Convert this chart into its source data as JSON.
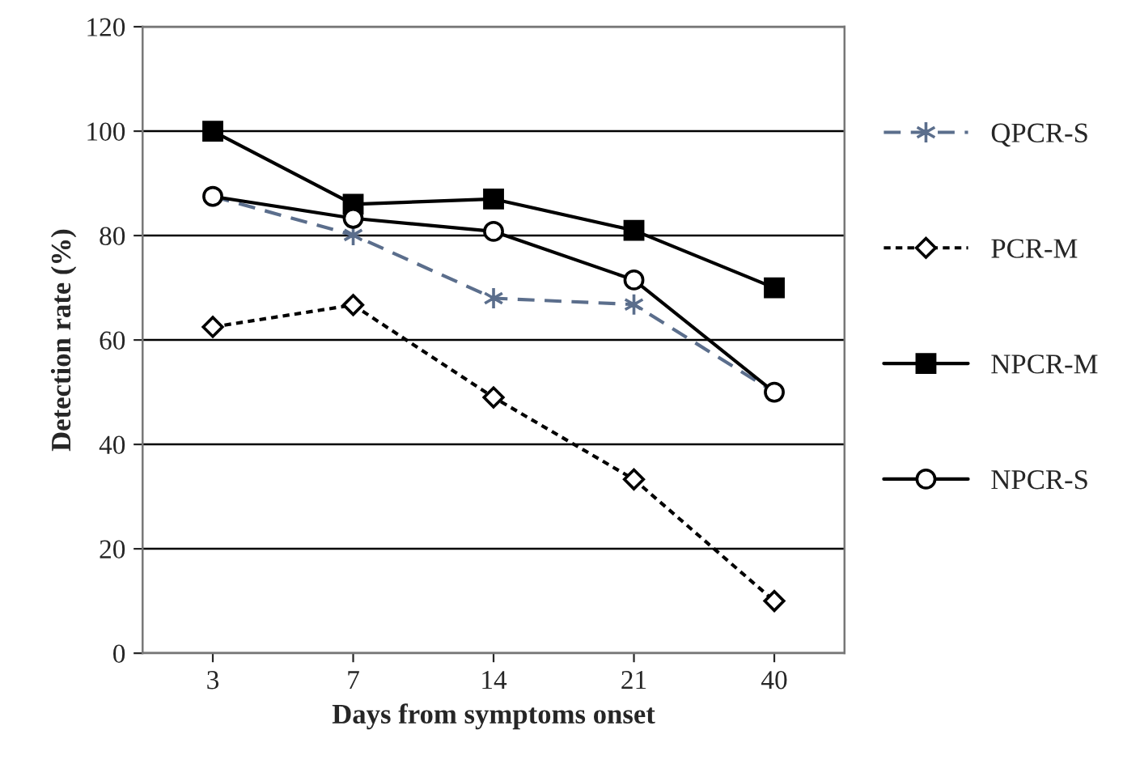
{
  "chart_data": {
    "type": "line",
    "xlabel": "Days from symptoms onset",
    "ylabel": "Detection rate (%)",
    "categories": [
      "3",
      "7",
      "14",
      "21",
      "40"
    ],
    "series": [
      {
        "name": "QPCR-S",
        "color": "#5b6e8c",
        "values": [
          87.5,
          80.1,
          68,
          66.8,
          50
        ],
        "marker": "cross",
        "line_style": "dashed"
      },
      {
        "name": "PCR-M",
        "color": "#000000",
        "values": [
          62.5,
          66.7,
          49,
          33.3,
          10
        ],
        "marker": "diamond",
        "line_style": "dotted"
      },
      {
        "name": "NPCR-M",
        "color": "#000000",
        "values": [
          100,
          86,
          87,
          81,
          70
        ],
        "marker": "square",
        "line_style": "solid"
      },
      {
        "name": "NPCR-S",
        "color": "#000000",
        "values": [
          87.5,
          83.3,
          80.8,
          71.5,
          50
        ],
        "marker": "circle",
        "line_style": "solid"
      }
    ],
    "ylim": [
      0,
      120
    ],
    "yticks": [
      0,
      20,
      40,
      60,
      80,
      100,
      120
    ],
    "grid": "y",
    "legend": "right"
  }
}
